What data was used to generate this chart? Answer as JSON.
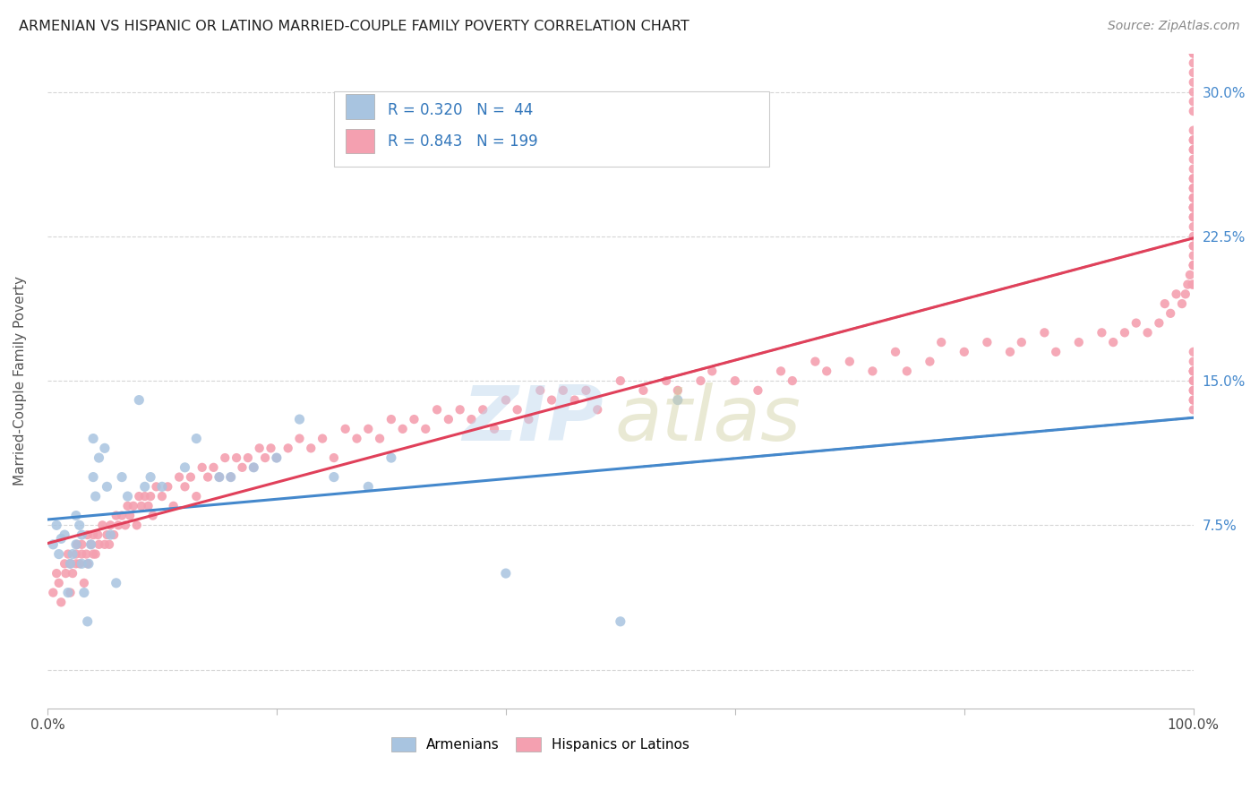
{
  "title": "ARMENIAN VS HISPANIC OR LATINO MARRIED-COUPLE FAMILY POVERTY CORRELATION CHART",
  "source": "Source: ZipAtlas.com",
  "ylabel": "Married-Couple Family Poverty",
  "armenian_R": 0.32,
  "armenian_N": 44,
  "hispanic_R": 0.843,
  "hispanic_N": 199,
  "armenian_color": "#a8c4e0",
  "hispanic_color": "#f4a0b0",
  "armenian_line_color": "#4488cc",
  "hispanic_line_color": "#e0405a",
  "legend_armenians": "Armenians",
  "legend_hispanics": "Hispanics or Latinos",
  "armenian_scatter_x": [
    0.005,
    0.008,
    0.01,
    0.012,
    0.015,
    0.018,
    0.02,
    0.022,
    0.025,
    0.025,
    0.028,
    0.03,
    0.03,
    0.032,
    0.035,
    0.036,
    0.038,
    0.04,
    0.04,
    0.042,
    0.045,
    0.05,
    0.052,
    0.055,
    0.06,
    0.065,
    0.07,
    0.08,
    0.085,
    0.09,
    0.1,
    0.12,
    0.13,
    0.15,
    0.16,
    0.18,
    0.2,
    0.22,
    0.25,
    0.28,
    0.3,
    0.4,
    0.5,
    0.55
  ],
  "armenian_scatter_y": [
    0.065,
    0.075,
    0.06,
    0.068,
    0.07,
    0.04,
    0.055,
    0.06,
    0.065,
    0.08,
    0.075,
    0.07,
    0.055,
    0.04,
    0.025,
    0.055,
    0.065,
    0.1,
    0.12,
    0.09,
    0.11,
    0.115,
    0.095,
    0.07,
    0.045,
    0.1,
    0.09,
    0.14,
    0.095,
    0.1,
    0.095,
    0.105,
    0.12,
    0.1,
    0.1,
    0.105,
    0.11,
    0.13,
    0.1,
    0.095,
    0.11,
    0.05,
    0.025,
    0.14
  ],
  "hispanic_scatter_x": [
    0.005,
    0.008,
    0.01,
    0.012,
    0.015,
    0.016,
    0.018,
    0.02,
    0.02,
    0.022,
    0.025,
    0.025,
    0.026,
    0.028,
    0.03,
    0.03,
    0.032,
    0.034,
    0.035,
    0.035,
    0.038,
    0.04,
    0.04,
    0.042,
    0.044,
    0.045,
    0.048,
    0.05,
    0.052,
    0.054,
    0.055,
    0.058,
    0.06,
    0.062,
    0.065,
    0.068,
    0.07,
    0.072,
    0.075,
    0.078,
    0.08,
    0.082,
    0.085,
    0.088,
    0.09,
    0.092,
    0.095,
    0.1,
    0.105,
    0.11,
    0.115,
    0.12,
    0.125,
    0.13,
    0.135,
    0.14,
    0.145,
    0.15,
    0.155,
    0.16,
    0.165,
    0.17,
    0.175,
    0.18,
    0.185,
    0.19,
    0.195,
    0.2,
    0.21,
    0.22,
    0.23,
    0.24,
    0.25,
    0.26,
    0.27,
    0.28,
    0.29,
    0.3,
    0.31,
    0.32,
    0.33,
    0.34,
    0.35,
    0.36,
    0.37,
    0.38,
    0.39,
    0.4,
    0.41,
    0.42,
    0.43,
    0.44,
    0.45,
    0.46,
    0.47,
    0.48,
    0.5,
    0.52,
    0.54,
    0.55,
    0.57,
    0.58,
    0.6,
    0.62,
    0.64,
    0.65,
    0.67,
    0.68,
    0.7,
    0.72,
    0.74,
    0.75,
    0.77,
    0.78,
    0.8,
    0.82,
    0.84,
    0.85,
    0.87,
    0.88,
    0.9,
    0.92,
    0.93,
    0.94,
    0.95,
    0.96,
    0.97,
    0.975,
    0.98,
    0.985,
    0.99,
    0.993,
    0.995,
    0.997,
    0.999,
    1.0,
    1.0,
    1.0,
    1.0,
    1.0,
    1.0,
    1.0,
    1.0,
    1.0,
    1.0,
    1.0,
    1.0,
    1.0,
    1.0,
    1.0,
    1.0,
    1.0,
    1.0,
    1.0,
    1.0,
    1.0,
    1.0,
    1.0,
    1.0,
    1.0,
    1.0,
    1.0,
    1.0,
    1.0,
    1.0,
    1.0,
    1.0,
    1.0,
    1.0,
    1.0,
    1.0,
    1.0,
    1.0,
    1.0,
    1.0,
    1.0,
    1.0,
    1.0,
    1.0,
    1.0,
    1.0,
    1.0,
    1.0,
    1.0,
    1.0,
    1.0
  ],
  "hispanic_scatter_y": [
    0.04,
    0.05,
    0.045,
    0.035,
    0.055,
    0.05,
    0.06,
    0.04,
    0.055,
    0.05,
    0.06,
    0.055,
    0.065,
    0.055,
    0.06,
    0.065,
    0.045,
    0.06,
    0.055,
    0.07,
    0.065,
    0.06,
    0.07,
    0.06,
    0.07,
    0.065,
    0.075,
    0.065,
    0.07,
    0.065,
    0.075,
    0.07,
    0.08,
    0.075,
    0.08,
    0.075,
    0.085,
    0.08,
    0.085,
    0.075,
    0.09,
    0.085,
    0.09,
    0.085,
    0.09,
    0.08,
    0.095,
    0.09,
    0.095,
    0.085,
    0.1,
    0.095,
    0.1,
    0.09,
    0.105,
    0.1,
    0.105,
    0.1,
    0.11,
    0.1,
    0.11,
    0.105,
    0.11,
    0.105,
    0.115,
    0.11,
    0.115,
    0.11,
    0.115,
    0.12,
    0.115,
    0.12,
    0.11,
    0.125,
    0.12,
    0.125,
    0.12,
    0.13,
    0.125,
    0.13,
    0.125,
    0.135,
    0.13,
    0.135,
    0.13,
    0.135,
    0.125,
    0.14,
    0.135,
    0.13,
    0.145,
    0.14,
    0.145,
    0.14,
    0.145,
    0.135,
    0.15,
    0.145,
    0.15,
    0.145,
    0.15,
    0.155,
    0.15,
    0.145,
    0.155,
    0.15,
    0.16,
    0.155,
    0.16,
    0.155,
    0.165,
    0.155,
    0.16,
    0.17,
    0.165,
    0.17,
    0.165,
    0.17,
    0.175,
    0.165,
    0.17,
    0.175,
    0.17,
    0.175,
    0.18,
    0.175,
    0.18,
    0.19,
    0.185,
    0.195,
    0.19,
    0.195,
    0.2,
    0.205,
    0.2,
    0.21,
    0.2,
    0.21,
    0.21,
    0.215,
    0.22,
    0.225,
    0.23,
    0.24,
    0.235,
    0.24,
    0.245,
    0.25,
    0.255,
    0.26,
    0.22,
    0.245,
    0.25,
    0.235,
    0.24,
    0.255,
    0.265,
    0.27,
    0.275,
    0.275,
    0.27,
    0.28,
    0.29,
    0.295,
    0.3,
    0.305,
    0.31,
    0.32,
    0.33,
    0.335,
    0.32,
    0.315,
    0.33,
    0.34,
    0.14,
    0.145,
    0.15,
    0.14,
    0.135,
    0.155,
    0.15,
    0.145,
    0.155,
    0.16,
    0.155,
    0.165,
    0.16,
    0.17,
    0.165,
    0.175,
    0.185,
    0.19,
    0.195,
    0.18,
    0.185,
    0.19,
    0.195,
    0.2,
    0.215,
    0.225
  ],
  "xlim": [
    0.0,
    1.0
  ],
  "ylim": [
    -0.02,
    0.32
  ],
  "ytick_values": [
    0.0,
    0.075,
    0.15,
    0.225,
    0.3
  ],
  "ytick_labels": [
    "",
    "7.5%",
    "15.0%",
    "22.5%",
    "30.0%"
  ],
  "xtick_values": [
    0.0,
    0.2,
    0.4,
    0.6,
    0.8,
    1.0
  ],
  "xtick_labels": [
    "0.0%",
    "",
    "",
    "",
    "",
    "100.0%"
  ],
  "background_color": "#ffffff",
  "grid_color": "#cccccc",
  "dashed_line_color": "#999999"
}
